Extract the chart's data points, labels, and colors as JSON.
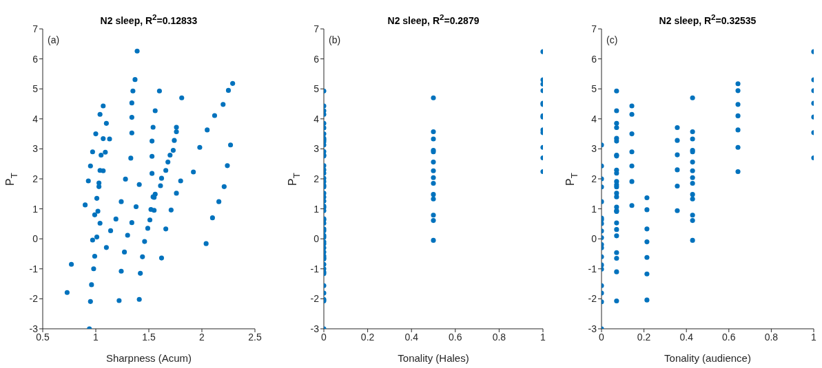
{
  "chart_data": [
    {
      "type": "scatter",
      "title": "N2 sleep, R$^{2}$=0.12833",
      "xlabel": "Sharpness (Acum)",
      "ylabel": "P$_{T}$",
      "annotations": [
        "(a)"
      ],
      "grid": false,
      "marker": "circle",
      "xlim": [
        0.5,
        2.5
      ],
      "xticks": [
        0.5,
        1,
        1.5,
        2,
        2.5
      ],
      "ylim": [
        -3,
        7
      ],
      "yticks": [
        -3,
        -2,
        -1,
        0,
        1,
        2,
        3,
        4,
        5,
        6,
        7
      ],
      "series": [
        {
          "color": "#0072bd",
          "x": [
            1.39,
            1.37,
            1.35,
            1.6,
            1.81,
            2.29,
            2.25,
            2.2,
            2.12,
            2.05,
            1.07,
            1.04,
            1.34,
            1.56,
            1.34,
            1.1,
            1.54,
            1.76,
            1.76,
            1.0,
            1.07,
            1.13,
            1.34,
            1.53,
            1.74,
            1.73,
            1.98,
            2.27,
            0.97,
            1.09,
            1.05,
            1.33,
            1.53,
            1.7,
            1.68,
            0.95,
            2.24,
            1.04,
            1.07,
            1.53,
            1.66,
            1.92,
            1.28,
            1.62,
            0.93,
            1.03,
            1.03,
            1.41,
            1.61,
            1.8,
            2.21,
            1.76,
            1.56,
            1.54,
            1.55,
            1.01,
            1.24,
            0.9,
            2.16,
            1.38,
            1.02,
            1.52,
            1.55,
            1.71,
            0.99,
            1.19,
            1.51,
            2.1,
            1.04,
            1.34,
            1.14,
            1.49,
            1.66,
            1.3,
            1.01,
            0.97,
            1.46,
            1.1,
            2.04,
            1.27,
            0.99,
            1.44,
            1.62,
            0.77,
            0.98,
            1.24,
            1.42,
            0.96,
            0.73,
            0.95,
            1.22,
            1.41,
            0.94
          ],
          "values": [
            6.26,
            5.31,
            4.93,
            4.93,
            4.7,
            5.18,
            4.95,
            4.48,
            4.11,
            3.63,
            4.43,
            4.15,
            4.53,
            4.27,
            4.05,
            3.85,
            3.72,
            3.72,
            3.57,
            3.5,
            3.34,
            3.33,
            3.53,
            3.26,
            3.28,
            2.95,
            3.05,
            3.13,
            2.9,
            2.89,
            2.79,
            2.69,
            2.75,
            2.79,
            2.56,
            2.43,
            2.44,
            2.28,
            2.27,
            2.18,
            2.28,
            2.23,
            1.99,
            2.02,
            1.93,
            1.86,
            1.74,
            1.81,
            1.77,
            1.93,
            1.74,
            1.52,
            1.49,
            1.4,
            1.38,
            1.35,
            1.24,
            1.13,
            1.24,
            1.07,
            0.92,
            0.98,
            0.95,
            0.96,
            0.8,
            0.66,
            0.63,
            0.7,
            0.52,
            0.54,
            0.27,
            0.35,
            0.33,
            0.12,
            0.06,
            -0.04,
            -0.09,
            -0.29,
            -0.16,
            -0.44,
            -0.58,
            -0.6,
            -0.64,
            -0.85,
            -1.0,
            -1.08,
            -1.15,
            -1.53,
            -1.79,
            -2.09,
            -2.06,
            -2.02,
            -3.0
          ]
        }
      ]
    },
    {
      "type": "scatter",
      "title": "N2 sleep, R$^{2}$=0.2879",
      "xlabel": "Tonality (Hales)",
      "ylabel": "P$_{T}$",
      "annotations": [
        "(b)"
      ],
      "grid": false,
      "marker": "circle",
      "xlim": [
        0,
        1
      ],
      "xticks": [
        0,
        0.2,
        0.4,
        0.6,
        0.8,
        1
      ],
      "ylim": [
        -3,
        7
      ],
      "yticks": [
        -3,
        -2,
        -1,
        0,
        1,
        2,
        3,
        4,
        5,
        6,
        7
      ],
      "series": [
        {
          "color": "#0072bd",
          "x": [
            0,
            0,
            0,
            0,
            0,
            0,
            0,
            0,
            0,
            0,
            0,
            0,
            0,
            0,
            0,
            0,
            0,
            0,
            0,
            0,
            0,
            0,
            0,
            0,
            0,
            0,
            0,
            0,
            0,
            0,
            0,
            0,
            0,
            0,
            0,
            0,
            0,
            0,
            0,
            0,
            0,
            0,
            0,
            0,
            0,
            0,
            0,
            0,
            0,
            0,
            0.5,
            0.5,
            0.5,
            0.5,
            0.5,
            0.5,
            0.5,
            0.5,
            0.5,
            0.5,
            0.5,
            0.5,
            0.5,
            0.5,
            1,
            1,
            1,
            1,
            1,
            1,
            1,
            1,
            1,
            1,
            1,
            1,
            1
          ],
          "values": [
            4.93,
            4.43,
            4.27,
            4.15,
            3.85,
            3.7,
            3.5,
            3.35,
            3.3,
            3.24,
            3.13,
            2.91,
            2.79,
            2.76,
            2.44,
            2.3,
            2.19,
            2.02,
            1.91,
            1.78,
            1.73,
            1.52,
            1.39,
            1.26,
            1.09,
            1.04,
            0.94,
            0.67,
            0.63,
            0.52,
            0.33,
            0.27,
            0.11,
            0.05,
            -0.1,
            -0.17,
            -0.3,
            -0.44,
            -0.57,
            -0.63,
            -0.67,
            -0.85,
            -1.0,
            -1.11,
            -1.16,
            -1.56,
            -1.81,
            -2.02,
            -2.07,
            -3.0,
            4.7,
            3.57,
            3.33,
            2.95,
            2.9,
            2.56,
            2.27,
            2.04,
            1.85,
            1.48,
            1.33,
            0.79,
            0.61,
            -0.05,
            6.24,
            5.3,
            5.16,
            4.94,
            4.52,
            4.48,
            4.1,
            4.06,
            3.63,
            3.54,
            3.05,
            2.7,
            2.24
          ]
        }
      ]
    },
    {
      "type": "scatter",
      "title": "N2 sleep, R$^{2}$=0.32535",
      "xlabel": "Tonality (audience)",
      "ylabel": "P$_{T}$",
      "annotations": [
        "(c)"
      ],
      "grid": false,
      "marker": "circle",
      "xlim": [
        0,
        1
      ],
      "xticks": [
        0,
        0.2,
        0.4,
        0.6,
        0.8,
        1
      ],
      "ylim": [
        -3,
        7
      ],
      "yticks": [
        -3,
        -2,
        -1,
        0,
        1,
        2,
        3,
        4,
        5,
        6,
        7
      ],
      "series": [
        {
          "color": "#0072bd",
          "x": [
            0,
            0,
            0,
            0,
            0,
            0,
            0,
            0,
            0,
            0,
            0,
            0,
            0,
            0,
            0,
            0,
            0,
            0,
            0,
            0.071,
            0.071,
            0.071,
            0.071,
            0.071,
            0.071,
            0.071,
            0.071,
            0.071,
            0.071,
            0.071,
            0.071,
            0.071,
            0.071,
            0.071,
            0.071,
            0.071,
            0.071,
            0.071,
            0.071,
            0.071,
            0.071,
            0.071,
            0.071,
            0.071,
            0.143,
            0.143,
            0.143,
            0.143,
            0.143,
            0.143,
            0.143,
            0.214,
            0.214,
            0.214,
            0.214,
            0.214,
            0.214,
            0.214,
            0.357,
            0.357,
            0.357,
            0.357,
            0.357,
            0.357,
            0.429,
            0.429,
            0.429,
            0.429,
            0.429,
            0.429,
            0.429,
            0.429,
            0.429,
            0.429,
            0.429,
            0.429,
            0.429,
            0.429,
            0.643,
            0.643,
            0.643,
            0.643,
            0.643,
            0.643,
            0.643,
            1,
            1,
            1,
            1,
            1,
            1,
            1
          ],
          "values": [
            3.13,
            2.43,
            2.0,
            1.73,
            1.24,
            0.69,
            0.64,
            0.51,
            0.26,
            0.04,
            -0.19,
            -0.3,
            -0.6,
            -0.87,
            -1.01,
            -1.56,
            -1.81,
            -2.1,
            -3.0,
            4.93,
            4.27,
            3.85,
            3.71,
            3.35,
            3.26,
            2.79,
            2.76,
            2.29,
            2.19,
            1.91,
            1.8,
            1.73,
            1.52,
            1.4,
            1.06,
            0.94,
            0.91,
            0.53,
            0.31,
            0.1,
            -0.46,
            -0.65,
            -1.1,
            -2.07,
            4.43,
            4.15,
            3.5,
            2.9,
            2.43,
            1.91,
            1.11,
            1.37,
            0.97,
            0.33,
            -0.1,
            -0.62,
            -1.17,
            -2.04,
            3.71,
            3.28,
            2.8,
            2.3,
            1.76,
            0.94,
            4.7,
            3.57,
            3.33,
            2.95,
            2.9,
            2.56,
            2.27,
            2.04,
            1.85,
            1.48,
            1.33,
            0.79,
            0.61,
            -0.05,
            5.17,
            4.94,
            4.48,
            4.1,
            3.63,
            3.05,
            2.24,
            6.24,
            5.3,
            4.94,
            4.52,
            4.06,
            3.54,
            2.7
          ]
        }
      ]
    }
  ]
}
